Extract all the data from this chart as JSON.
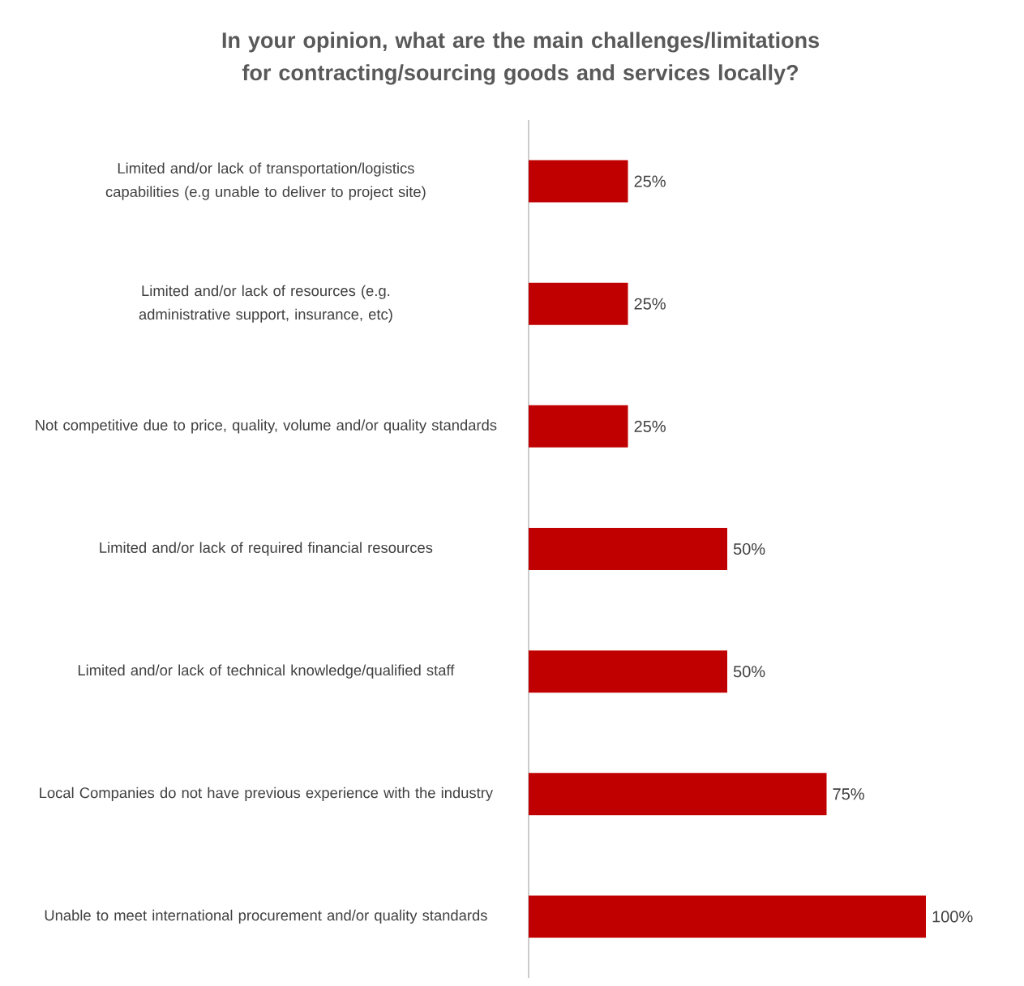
{
  "chart_data": {
    "type": "bar",
    "orientation": "horizontal",
    "title": "In your opinion, what are the main challenges/limitations for contracting/sourcing goods and services locally?",
    "categories": [
      "Limited and/or lack of transportation/logistics capabilities (e.g unable to deliver to project site)",
      "Limited and/or lack of resources (e.g. administrative support, insurance, etc)",
      "Not competitive due to price, quality, volume and/or quality standards",
      "Limited and/or lack of required financial resources",
      "Limited and/or lack of technical knowledge/qualified staff",
      "Local Companies do not have previous experience with the industry",
      "Unable to meet international procurement and/or quality standards"
    ],
    "values": [
      25,
      25,
      25,
      50,
      50,
      75,
      100
    ],
    "value_labels": [
      "25%",
      "25%",
      "25%",
      "50%",
      "50%",
      "75%",
      "100%"
    ],
    "color": "#c00000",
    "tick_labels": "y"
  }
}
